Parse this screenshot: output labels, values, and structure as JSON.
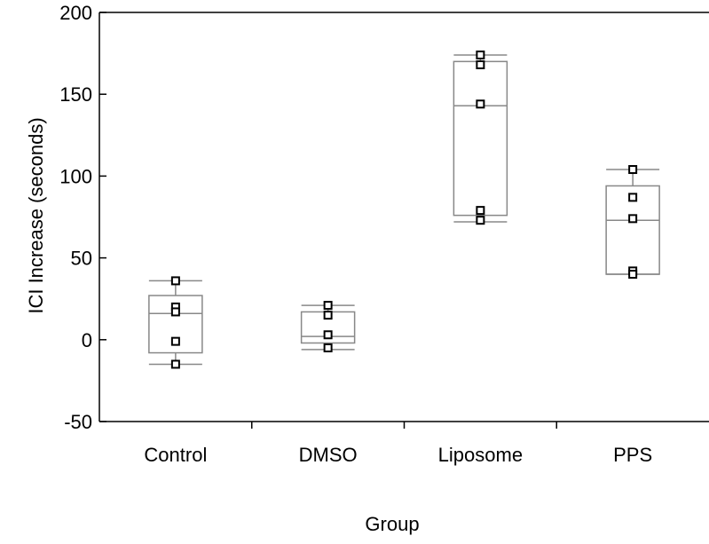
{
  "chart_data": {
    "type": "box",
    "title": "",
    "xlabel": "Group",
    "ylabel": "ICI Increase (seconds)",
    "ylim": [
      -50,
      200
    ],
    "y_ticks": [
      -50,
      0,
      50,
      100,
      150,
      200
    ],
    "y_tick_labels": [
      "-50",
      "0",
      "50",
      "100",
      "150",
      "200"
    ],
    "grid": false,
    "categories": [
      "Control",
      "DMSO",
      "Liposome",
      "PPS"
    ],
    "boxes": [
      {
        "category": "Control",
        "whisker_low": -15,
        "q1": -8,
        "median": 16,
        "q3": 27,
        "whisker_high": 36,
        "points": [
          36,
          20,
          17,
          -1,
          -15
        ]
      },
      {
        "category": "DMSO",
        "whisker_low": -6,
        "q1": -2,
        "median": 2,
        "q3": 17,
        "whisker_high": 21,
        "points": [
          21,
          15,
          3,
          -5
        ]
      },
      {
        "category": "Liposome",
        "whisker_low": 72,
        "q1": 76,
        "median": 143,
        "q3": 170,
        "whisker_high": 174,
        "points": [
          174,
          168,
          144,
          79,
          73
        ]
      },
      {
        "category": "PPS",
        "whisker_low": 40,
        "q1": 40,
        "median": 73,
        "q3": 94,
        "whisker_high": 104,
        "points": [
          104,
          87,
          74,
          42,
          40
        ]
      }
    ],
    "colors": {
      "box": "#888888",
      "axis": "#000000",
      "marker": "#000000"
    }
  }
}
